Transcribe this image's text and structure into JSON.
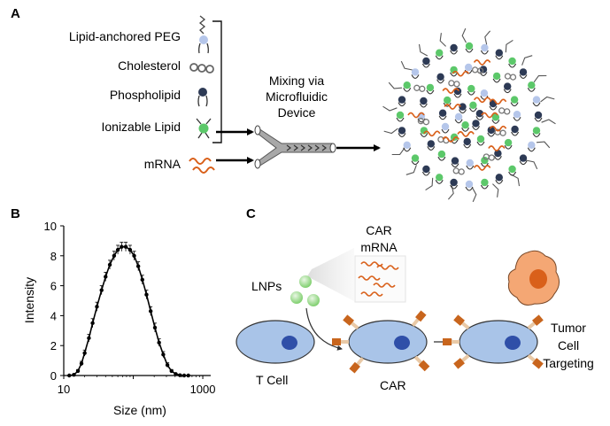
{
  "panel_a": {
    "label": "A",
    "components": [
      {
        "label": "Lipid-anchored PEG",
        "icon": "peg-lipid-icon"
      },
      {
        "label": "Cholesterol",
        "icon": "cholesterol-icon"
      },
      {
        "label": "Phospholipid",
        "icon": "phospholipid-icon"
      },
      {
        "label": "Ionizable Lipid",
        "icon": "ionizable-lipid-icon"
      },
      {
        "label": "mRNA",
        "icon": "mrna-icon"
      }
    ],
    "process_lines": [
      "Mixing via",
      "Microfluidic",
      "Device"
    ]
  },
  "panel_b": {
    "label": "B",
    "chart_data": {
      "type": "line",
      "xlabel": "Size (nm)",
      "ylabel": "Intensity",
      "x_scale": "log",
      "xlim": [
        10,
        1300
      ],
      "ylim": [
        0,
        10
      ],
      "x_ticks": [
        "10",
        "100",
        "1000"
      ],
      "x_tick_labels_shown": [
        "10",
        "1000"
      ],
      "y_ticks": [
        "0",
        "2",
        "4",
        "6",
        "8",
        "10"
      ],
      "grid": false,
      "series": [
        {
          "x": [
            12,
            14,
            16,
            18,
            20,
            23,
            26,
            30,
            35,
            40,
            46,
            53,
            60,
            68,
            78,
            90,
            103,
            118,
            135,
            155,
            178,
            205,
            235,
            270,
            310,
            355,
            408,
            470,
            540,
            620
          ],
          "y": [
            0,
            0.05,
            0.3,
            0.8,
            1.5,
            2.5,
            3.5,
            4.6,
            5.7,
            6.6,
            7.4,
            8.0,
            8.4,
            8.6,
            8.6,
            8.4,
            8.0,
            7.3,
            6.4,
            5.4,
            4.3,
            3.2,
            2.2,
            1.4,
            0.7,
            0.3,
            0.1,
            0.02,
            0,
            0
          ],
          "error": [
            0,
            0.05,
            0.1,
            0.15,
            0.2,
            0.25,
            0.3,
            0.3,
            0.3,
            0.3,
            0.3,
            0.3,
            0.3,
            0.3,
            0.3,
            0.3,
            0.3,
            0.3,
            0.3,
            0.3,
            0.3,
            0.3,
            0.25,
            0.2,
            0.15,
            0.1,
            0.05,
            0.05,
            0,
            0
          ]
        }
      ]
    }
  },
  "panel_c": {
    "label": "C",
    "car_mrna_lines": [
      "CAR",
      "mRNA"
    ],
    "lnps_label": "LNPs",
    "t_cell_label": "T Cell",
    "car_label": "CAR",
    "tumor_lines": [
      "Tumor",
      "Cell",
      "Targeting"
    ]
  },
  "colors": {
    "peg_blue": "#b5c6ea",
    "phospholipid_navy": "#2d3a55",
    "ionizable_green": "#5cc86a",
    "mrna_orange": "#d9601a",
    "cell_blue": "#a9c4e8",
    "nucleus_blue": "#2f4fa8",
    "tumor_orange": "#f4a774",
    "car_orange": "#c8651d"
  }
}
